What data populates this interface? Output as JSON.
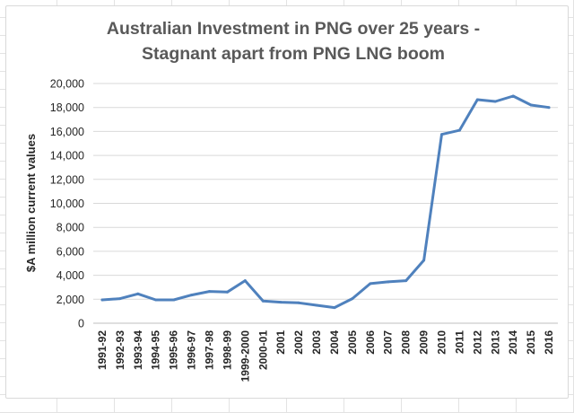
{
  "chart_data": {
    "type": "line",
    "title": "Australian Investment in PNG over 25 years - Stagnant apart from PNG LNG boom",
    "title_lines": [
      "Australian Investment in PNG over 25 years -",
      "Stagnant apart from PNG LNG boom"
    ],
    "xlabel": "",
    "ylabel": "$A million current values",
    "ylim": [
      0,
      20000
    ],
    "yticks": [
      0,
      2000,
      4000,
      6000,
      8000,
      10000,
      12000,
      14000,
      16000,
      18000,
      20000
    ],
    "ytick_labels": [
      "0",
      "2,000",
      "4,000",
      "6,000",
      "8,000",
      "10,000",
      "12,000",
      "14,000",
      "16,000",
      "18,000",
      "20,000"
    ],
    "grid": true,
    "legend": "none",
    "categories": [
      "1991-92",
      "1992-93",
      "1993-94",
      "1994-95",
      "1995-96",
      "1996-97",
      "1997-98",
      "1998-99",
      "1999-2000",
      "2000-01",
      "2001",
      "2002",
      "2003",
      "2004",
      "2005",
      "2006",
      "2007",
      "2008",
      "2009",
      "2010",
      "2011",
      "2012",
      "2013",
      "2014",
      "2015",
      "2016"
    ],
    "series": [
      {
        "values": [
          1950,
          2050,
          2450,
          1950,
          1950,
          2350,
          2650,
          2600,
          3550,
          1850,
          1750,
          1700,
          1500,
          1300,
          2050,
          3300,
          3450,
          3550,
          5250,
          15750,
          16100,
          18650,
          18500,
          18950,
          18200,
          18000
        ],
        "color": "#4f81bd"
      }
    ]
  }
}
